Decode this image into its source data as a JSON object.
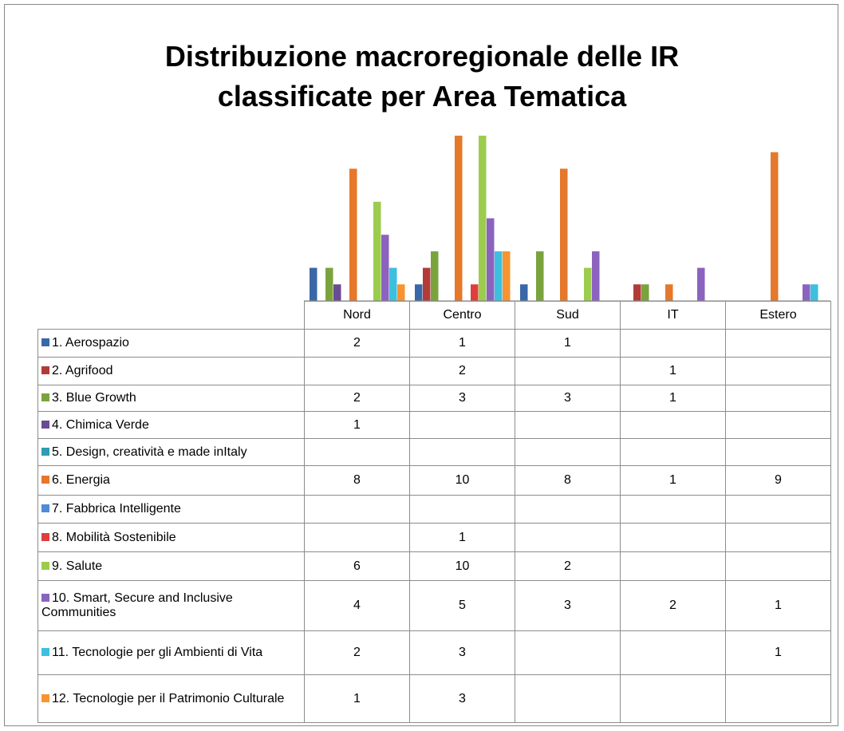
{
  "chart_data": {
    "type": "bar",
    "title": "Distribuzione macroregionale delle IR classificate per Area Tematica",
    "categories": [
      "Nord",
      "Centro",
      "Sud",
      "IT",
      "Estero"
    ],
    "series": [
      {
        "name": "1. Aerospazio",
        "color": "#3a67a8",
        "values": [
          2,
          1,
          1,
          null,
          null
        ]
      },
      {
        "name": "2. Agrifood",
        "color": "#b23b38",
        "values": [
          null,
          2,
          null,
          1,
          null
        ]
      },
      {
        "name": "3. Blue Growth",
        "color": "#7aa33e",
        "values": [
          2,
          3,
          3,
          1,
          null
        ]
      },
      {
        "name": "4.  Chimica Verde",
        "color": "#6a4c94",
        "values": [
          1,
          null,
          null,
          null,
          null
        ]
      },
      {
        "name": "5. Design, creatività e made inItaly",
        "color": "#2f9cb3",
        "values": [
          null,
          null,
          null,
          null,
          null
        ]
      },
      {
        "name": "6. Energia",
        "color": "#e5782a",
        "values": [
          8,
          10,
          8,
          1,
          9
        ]
      },
      {
        "name": "7. Fabbrica Intelligente",
        "color": "#4f8bd9",
        "values": [
          null,
          null,
          null,
          null,
          null
        ]
      },
      {
        "name": "8. Mobilità Sostenibile",
        "color": "#de3f3a",
        "values": [
          null,
          1,
          null,
          null,
          null
        ]
      },
      {
        "name": "9. Salute",
        "color": "#9ccc4e",
        "values": [
          6,
          10,
          2,
          null,
          null
        ]
      },
      {
        "name": "10. Smart, Secure and Inclusive Communities",
        "color": "#8b63bf",
        "values": [
          4,
          5,
          3,
          2,
          1
        ]
      },
      {
        "name": "11. Tecnologie per gli Ambienti di Vita",
        "color": "#3dbfe0",
        "values": [
          2,
          3,
          null,
          null,
          1
        ]
      },
      {
        "name": "12.  Tecnologie per il Patrimonio Culturale",
        "color": "#f7942f",
        "values": [
          1,
          3,
          null,
          null,
          null
        ]
      }
    ]
  }
}
